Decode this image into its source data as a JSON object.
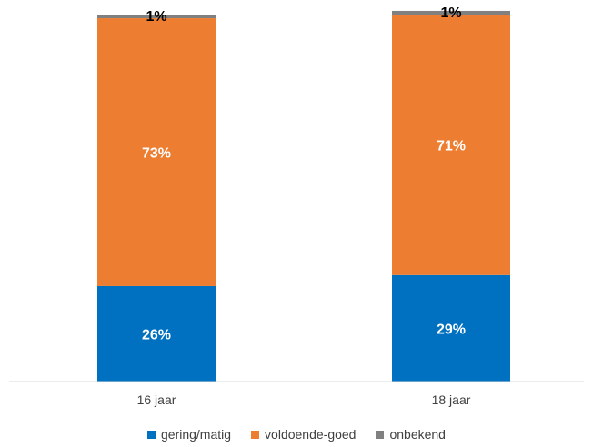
{
  "chart_data": {
    "type": "bar",
    "stacked": true,
    "categories": [
      "16 jaar",
      "18 jaar"
    ],
    "series": [
      {
        "name": "gering/matig",
        "values": [
          26,
          29
        ],
        "labels": [
          "26%",
          "29%"
        ],
        "color": "#0070C0",
        "label_color": "#ffffff"
      },
      {
        "name": "voldoende-goed",
        "values": [
          73,
          71
        ],
        "labels": [
          "73%",
          "71%"
        ],
        "color": "#ED7D31",
        "label_color": "#ffffff"
      },
      {
        "name": "onbekend",
        "values": [
          1,
          1
        ],
        "labels": [
          "1%",
          "1%"
        ],
        "color": "#808080",
        "label_color": "#000000"
      }
    ],
    "ylim": [
      0,
      100
    ],
    "grid": false,
    "legend_position": "bottom"
  }
}
